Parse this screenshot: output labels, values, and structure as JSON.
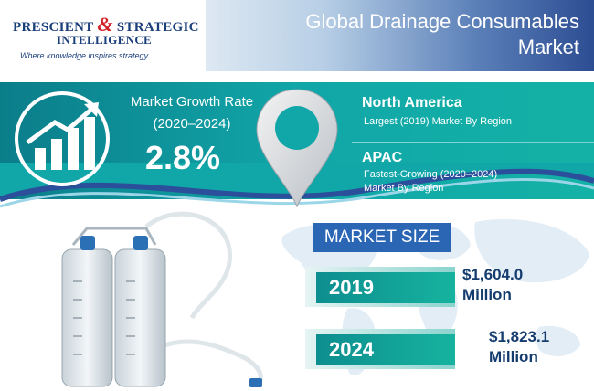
{
  "logo": {
    "line1_a": "PRESCIENT",
    "amp": "&",
    "line1_b": "STRATEGIC",
    "line2": "INTELLIGENCE",
    "tagline": "Where knowledge inspires strategy"
  },
  "header": {
    "title_line1": "Global Drainage Consumables",
    "title_line2": "Market"
  },
  "growth": {
    "label_line1": "Market Growth Rate",
    "label_line2": "(2020–2024)",
    "value": "2.8%"
  },
  "regions": [
    {
      "name": "North America",
      "desc_line1": "Largest (2019) Market By Region",
      "desc_line2": ""
    },
    {
      "name": "APAC",
      "desc_line1": "Fastest-Growing (2020–2024)",
      "desc_line2": "Market By Region"
    }
  ],
  "market_size": {
    "heading": "MARKET SIZE",
    "rows": [
      {
        "year": "2019",
        "value": "$1,604.0",
        "unit": "Million"
      },
      {
        "year": "2024",
        "value": "$1,823.1",
        "unit": "Million"
      }
    ]
  },
  "colors": {
    "teal": "#11a6a8",
    "navy": "#1b3f7a",
    "blue_label": "#2b66b5",
    "logo_red": "#d3222a"
  },
  "icons": [
    "growth-chart-icon",
    "location-pin-icon",
    "drainage-bottle-image",
    "world-map"
  ]
}
